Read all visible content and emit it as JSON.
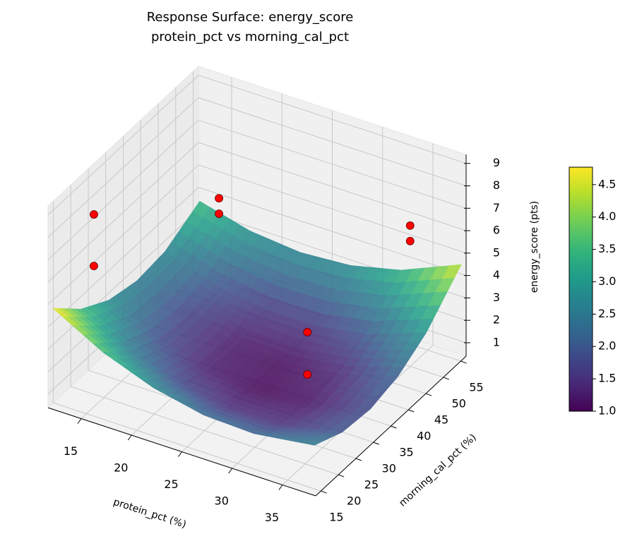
{
  "chart_data": {
    "type": "surface",
    "title": "Response Surface: energy_score",
    "subtitle": "protein_pct vs morning_cal_pct",
    "xlabel": "protein_pct (%)",
    "ylabel": "morning_cal_pct (%)",
    "zlabel": "energy_score (pts)",
    "xlim": [
      11.7,
      38.3
    ],
    "ylim": [
      13.5,
      56.5
    ],
    "zlim": [
      0.4,
      9.4
    ],
    "xticks": [
      15,
      20,
      25,
      30,
      35
    ],
    "yticks": [
      15,
      20,
      25,
      30,
      35,
      40,
      45,
      50,
      55
    ],
    "zticks": [
      1,
      2,
      3,
      4,
      5,
      6,
      7,
      8,
      9
    ],
    "grid": true,
    "surface": {
      "x": [
        12,
        17,
        22,
        27,
        32,
        38
      ],
      "y": [
        14,
        22,
        30,
        38,
        46,
        56
      ],
      "z": [
        [
          4.81,
          3.58,
          2.74,
          2.26,
          2.17,
          2.54
        ],
        [
          3.61,
          2.5,
          1.78,
          1.42,
          1.45,
          1.97
        ],
        [
          2.85,
          1.87,
          1.26,
          1.03,
          1.17,
          1.84
        ],
        [
          2.55,
          1.69,
          1.2,
          1.09,
          1.35,
          2.16
        ],
        [
          2.69,
          1.95,
          1.58,
          1.59,
          1.97,
          2.93
        ],
        [
          3.5,
          2.91,
          2.69,
          2.85,
          3.38,
          4.52
        ]
      ],
      "colormap": "viridis",
      "alpha": 0.85
    },
    "scatter": {
      "x": [
        14,
        14,
        16,
        16,
        35,
        35,
        30,
        30
      ],
      "y": [
        20,
        20,
        50,
        50,
        50,
        50,
        35,
        35
      ],
      "z": [
        8.42,
        6.12,
        5.09,
        4.4,
        6.68,
        5.99,
        3.36,
        1.47
      ],
      "color": "#ff0000"
    },
    "clim": [
      1.0,
      4.77
    ],
    "cticks": [
      {
        "value": 1,
        "label": "1.0"
      },
      1.5,
      {
        "value": 2,
        "label": "2.0"
      },
      2.5,
      {
        "value": 3,
        "label": "3.0"
      },
      3.5,
      {
        "value": 4,
        "label": "4.0"
      },
      4.5
    ]
  }
}
